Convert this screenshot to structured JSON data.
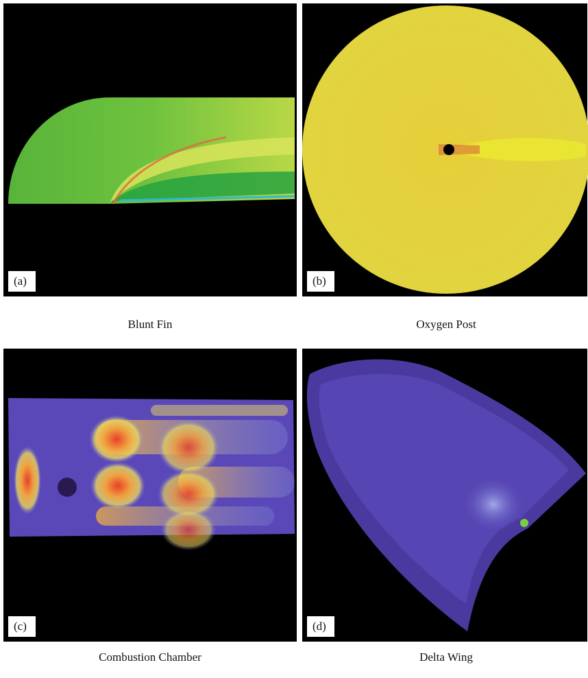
{
  "panels": [
    {
      "label": "(a)",
      "caption": "Blunt Fin"
    },
    {
      "label": "(b)",
      "caption": "Oxygen Post"
    },
    {
      "label": "(c)",
      "caption": "Combustion Chamber"
    },
    {
      "label": "(d)",
      "caption": "Delta Wing"
    }
  ]
}
